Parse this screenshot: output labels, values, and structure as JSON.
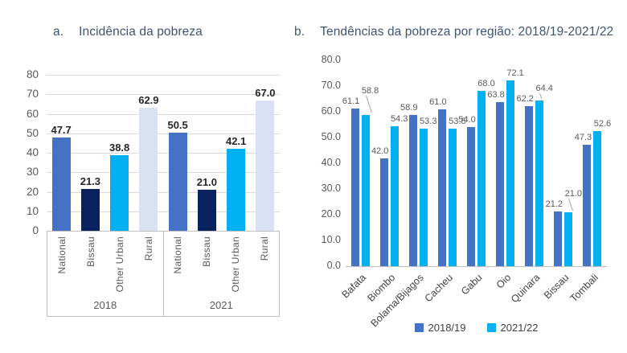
{
  "colors": {
    "title_text": "#3f5472",
    "axis_text": "#595959",
    "gridline": "#d9d9d9",
    "axis_line": "#bfbfbf",
    "data_label_a": "#262626",
    "data_label_b": "#595959",
    "series_blue": "#4472c4",
    "series_navy": "#0a2160",
    "series_cyan": "#00b0f0",
    "series_light": "#d9e1f2"
  },
  "chart_data": [
    {
      "type": "bar",
      "panel_label": "a.",
      "title": "Incidência da pobreza",
      "categories": [
        "National",
        "Bissau",
        "Other Urban",
        "Rural"
      ],
      "category_colors": [
        "#4472c4",
        "#0a2160",
        "#00b0f0",
        "#d9e1f2"
      ],
      "groups": [
        {
          "label": "2018",
          "values": [
            47.7,
            21.3,
            38.8,
            62.9
          ]
        },
        {
          "label": "2021",
          "values": [
            50.5,
            21.0,
            42.1,
            67.0
          ]
        }
      ],
      "ylim": [
        0,
        80
      ],
      "ytick_step": 10,
      "yticks": [
        "0",
        "10",
        "20",
        "30",
        "40",
        "50",
        "60",
        "70",
        "80"
      ],
      "grid": true,
      "legend": null,
      "data_label_decimals": 1
    },
    {
      "type": "bar",
      "panel_label": "b.",
      "title": "Tendências da pobreza por região: 2018/19-2021/22",
      "categories": [
        "Bafata",
        "Biombo",
        "Bolama/Bijagos",
        "Cacheu",
        "Gabu",
        "Oio",
        "Quinara",
        "Bissau",
        "Tombali"
      ],
      "series": [
        {
          "name": "2018/19",
          "color": "#4472c4",
          "values": [
            61.1,
            42.0,
            58.9,
            61.0,
            54.0,
            63.8,
            62.2,
            21.2,
            47.3
          ]
        },
        {
          "name": "2021/22",
          "color": "#00b0f0",
          "values": [
            58.8,
            54.3,
            53.3,
            53.5,
            68.0,
            72.1,
            64.4,
            21.0,
            52.6
          ]
        }
      ],
      "ylim": [
        0,
        80
      ],
      "ytick_step": 10,
      "yticks": [
        "0.0",
        "10.0",
        "20.0",
        "30.0",
        "40.0",
        "50.0",
        "60.0",
        "70.0",
        "80.0"
      ],
      "grid": false,
      "legend_position": "bottom",
      "data_label_decimals": 1
    }
  ]
}
